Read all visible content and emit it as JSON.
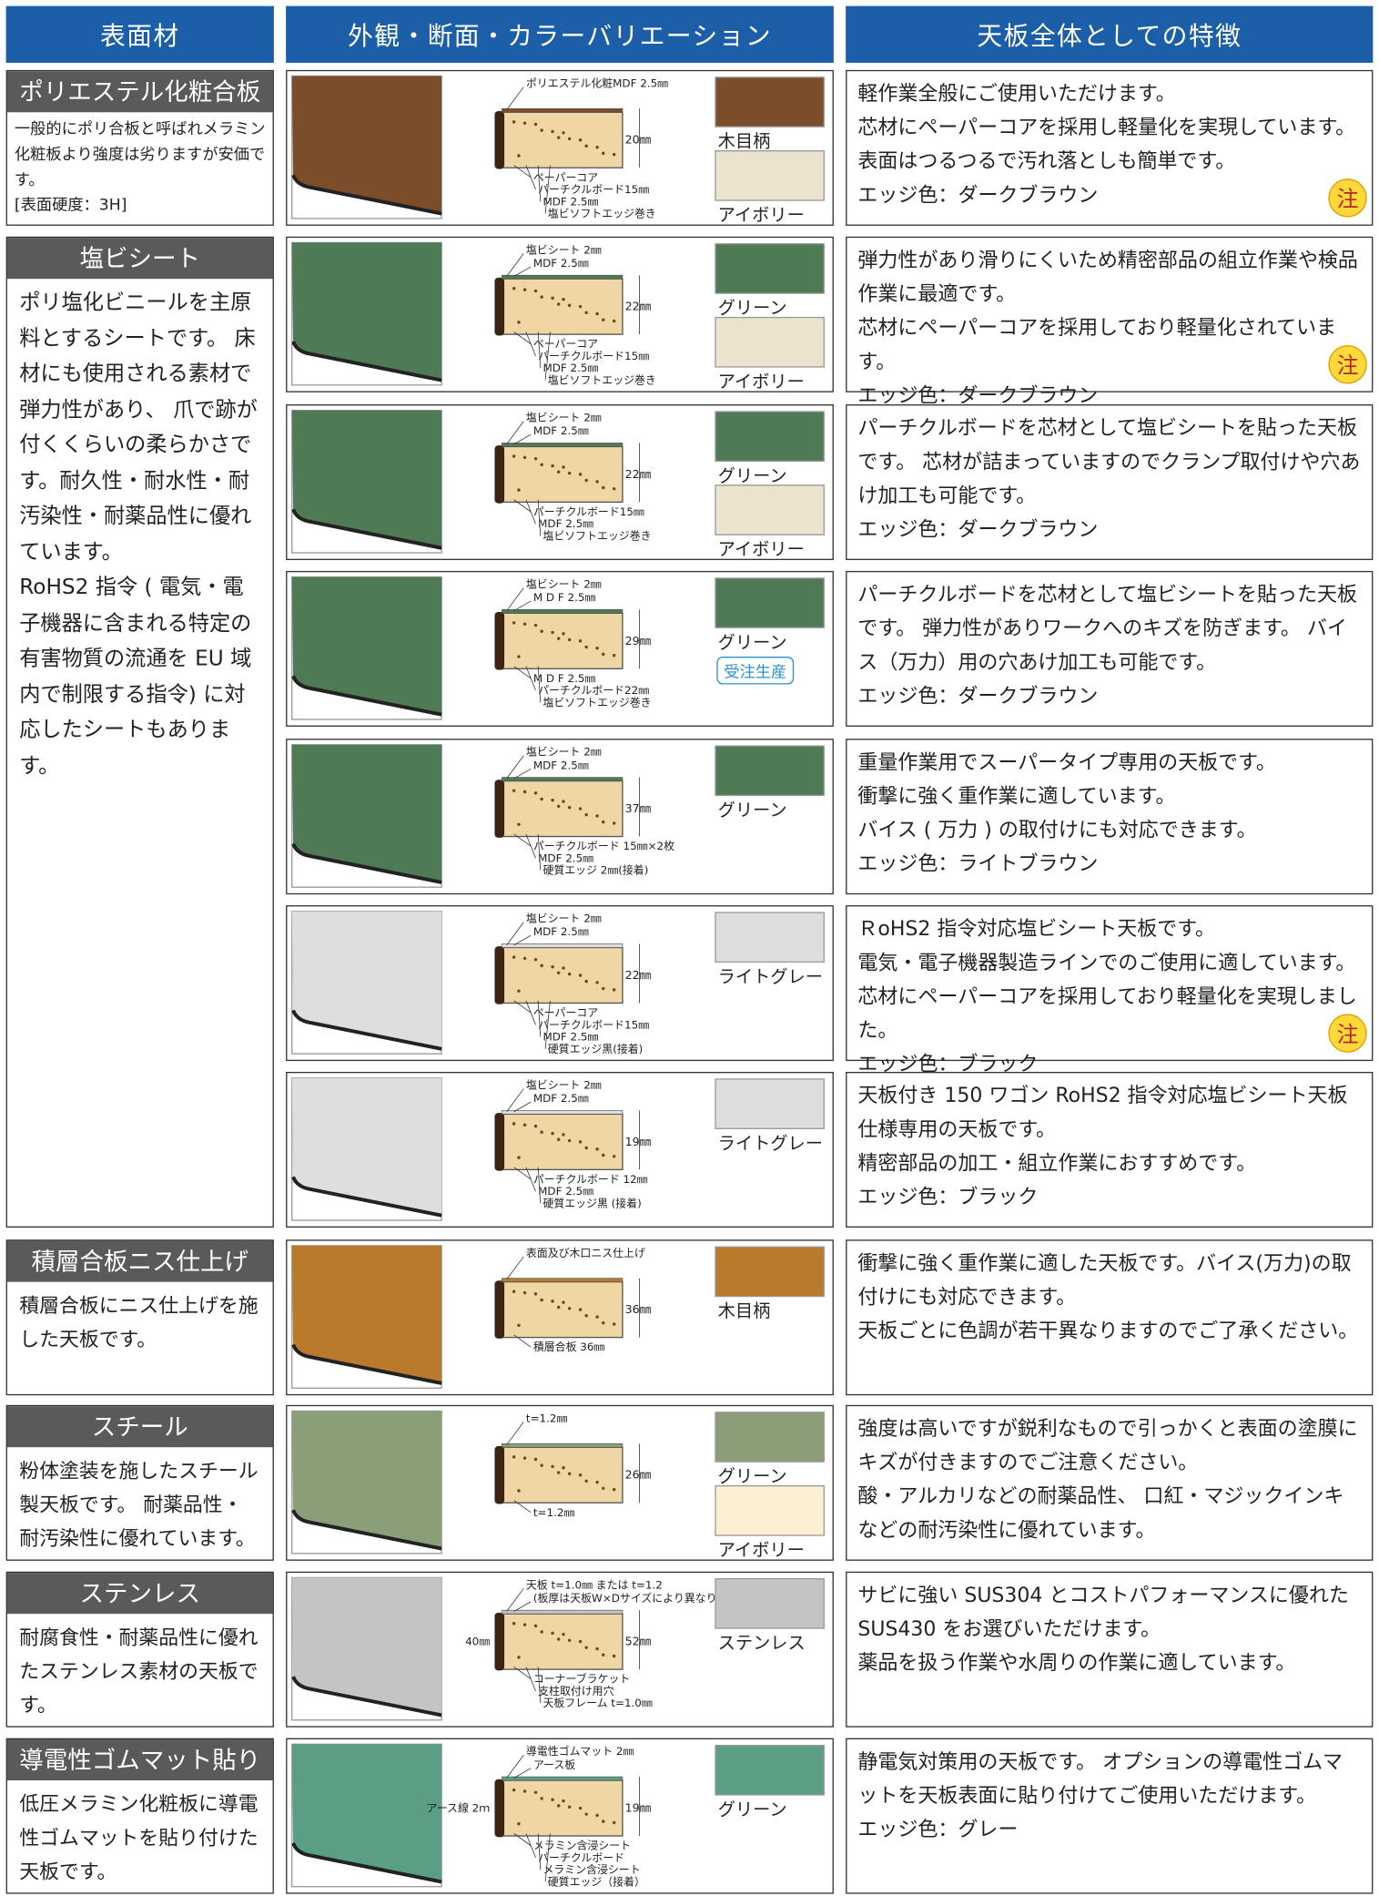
{
  "header": {
    "col1": "表面材",
    "col2": "外観・断面・カラーバリエーション",
    "col3": "天板全体としての特徴"
  },
  "materials": [
    {
      "name": "ポリエステル化粧合板",
      "description": [
        "一般的にポリ合板と呼ばれメラミン化粧板より強度は劣りますが安価です。",
        "[表面硬度：3H]"
      ],
      "rows": [
        {
          "diagram": {
            "top": [
              "ポリエステル化粧MDF 2.5㎜"
            ],
            "dimension": "20㎜",
            "bottom": [
              "ペーパーコア",
              "パーチクルボード15㎜",
              "MDF 2.5㎜",
              "塩ビソフトエッジ巻き"
            ]
          },
          "swatches": [
            {
              "name": "木目柄",
              "color": "#7b4d2a"
            },
            {
              "name": "アイボリー",
              "color": "#ece3cf"
            }
          ],
          "features": [
            "軽作業全般にご使用いただけます。",
            "芯材にペーパーコアを採用し軽量化を実現しています。 表面はつるつるで汚れ落としも簡単です。",
            "エッジ色：ダークブラウン"
          ],
          "note": "注"
        }
      ]
    },
    {
      "name": "塩ビシート",
      "description": [
        "ポリ塩化ビニールを主原料とするシートです。 床材にも使用される素材で弾力性があり、 爪で跡が付くくらいの柔らかさです。耐久性・耐水性・耐汚染性・耐薬品性に優れています。",
        "RoHS2 指令 ( 電気・電子機器に含まれる特定の有害物質の流通を EU 域内で制限する指令) に対応したシートもあります。"
      ],
      "rows": [
        {
          "diagram": {
            "top": [
              "塩ビシート 2㎜",
              "MDF 2.5㎜"
            ],
            "dimension": "22㎜",
            "bottom": [
              "ペーパーコア",
              "パーチクルボード15㎜",
              "MDF 2.5㎜",
              "塩ビソフトエッジ巻き"
            ]
          },
          "swatches": [
            {
              "name": "グリーン",
              "color": "#4e7a55"
            },
            {
              "name": "アイボリー",
              "color": "#ece3cf"
            }
          ],
          "features": [
            "弾力性があり滑りにくいため精密部品の組立作業や検品作業に最適です。",
            "芯材にペーパーコアを採用しており軽量化されています。",
            "エッジ色：ダークブラウン"
          ],
          "note": "注"
        },
        {
          "diagram": {
            "top": [
              "塩ビシート 2㎜",
              "MDF 2.5㎜"
            ],
            "dimension": "22㎜",
            "bottom": [
              "パーチクルボード15㎜",
              "MDF 2.5㎜",
              "塩ビソフトエッジ巻き"
            ]
          },
          "swatches": [
            {
              "name": "グリーン",
              "color": "#4e7a55"
            },
            {
              "name": "アイボリー",
              "color": "#ece3cf"
            }
          ],
          "features": [
            "パーチクルボードを芯材として塩ビシートを貼った天板です。 芯材が詰まっていますのでクランプ取付けや穴あけ加工も可能です。",
            "エッジ色：ダークブラウン"
          ]
        },
        {
          "diagram": {
            "top": [
              "塩ビシート 2㎜",
              "M D F 2.5㎜"
            ],
            "dimension": "29㎜",
            "bottom": [
              "M D F 2.5㎜",
              "パーチクルボード22㎜",
              "塩ビソフトエッジ巻き"
            ]
          },
          "swatches": [
            {
              "name": "グリーン",
              "color": "#4e7a55"
            }
          ],
          "badge": "受注生産",
          "features": [
            "パーチクルボードを芯材として塩ビシートを貼った天板です。 弾力性がありワークへのキズを防ぎます。 バイス（万力）用の穴あけ加工も可能です。",
            "エッジ色：ダークブラウン"
          ]
        },
        {
          "diagram": {
            "top": [
              "塩ビシート 2㎜",
              "MDF 2.5㎜"
            ],
            "dimension": "37㎜",
            "bottom": [
              "パーチクルボード 15㎜×2枚",
              "MDF 2.5㎜",
              "硬質エッジ 2㎜(接着)"
            ]
          },
          "swatches": [
            {
              "name": "グリーン",
              "color": "#4e7a55"
            }
          ],
          "features": [
            "重量作業用でスーパータイプ専用の天板です。",
            "衝撃に強く重作業に適しています。",
            "バイス ( 万力 ) の取付けにも対応できます。",
            "エッジ色：ライトブラウン"
          ]
        },
        {
          "diagram": {
            "top": [
              "塩ビシート 2㎜",
              "MDF 2.5㎜"
            ],
            "dimension": "22㎜",
            "bottom": [
              "ペーパーコア",
              "パーチクルボード15㎜",
              "MDF 2.5㎜",
              "硬質エッジ黒(接着)"
            ]
          },
          "swatches": [
            {
              "name": "ライトグレー",
              "color": "#dedede"
            }
          ],
          "features": [
            "ＲoHS2 指令対応塩ビシート天板です。",
            "電気・電子機器製造ラインでのご使用に適しています。",
            "芯材にペーパーコアを採用しており軽量化を実現しました。",
            "エッジ色：ブラック"
          ],
          "note": "注"
        },
        {
          "diagram": {
            "top": [
              "塩ビシート 2㎜",
              "MDF 2.5㎜"
            ],
            "dimension": "19㎜",
            "bottom": [
              "パーチクルボード 12㎜",
              "MDF 2.5㎜",
              "硬質エッジ黒 (接着)"
            ]
          },
          "swatches": [
            {
              "name": "ライトグレー",
              "color": "#dedede"
            }
          ],
          "features": [
            "天板付き 150 ワゴン RoHS2 指令対応塩ビシート天板仕様専用の天板です。",
            "精密部品の加工・組立作業におすすめです。",
            "エッジ色：ブラック"
          ]
        }
      ]
    },
    {
      "name": "積層合板ニス仕上げ",
      "description": [
        "積層合板にニス仕上げを施した天板です。"
      ],
      "rows": [
        {
          "diagram": {
            "top": [
              "表面及び木口ニス仕上げ"
            ],
            "dimension": "36㎜",
            "bottom": [
              "積層合板 36㎜"
            ]
          },
          "swatches": [
            {
              "name": "木目柄",
              "color": "#b97a2c"
            }
          ],
          "features": [
            "衝撃に強く重作業に適した天板です。バイス(万力)の取付けにも対応できます。",
            "天板ごとに色調が若干異なりますのでご了承ください。"
          ]
        }
      ]
    },
    {
      "name": "スチール",
      "description": [
        "粉体塗装を施したスチール製天板です。 耐薬品性・耐汚染性に優れています。"
      ],
      "rows": [
        {
          "diagram": {
            "top": [
              "t=1.2㎜"
            ],
            "dimension": "26㎜",
            "bottom": [
              "t=1.2㎜"
            ]
          },
          "swatches": [
            {
              "name": "グリーン",
              "color": "#8a9e78"
            },
            {
              "name": "アイボリー",
              "color": "#fcf0d2"
            }
          ],
          "features": [
            "強度は高いですが鋭利なもので引っかくと表面の塗膜にキズが付きますのでご注意ください。",
            "酸・アルカリなどの耐薬品性、 口紅・マジックインキなどの耐汚染性に優れています。"
          ]
        }
      ]
    },
    {
      "name": "ステンレス",
      "description": [
        "耐腐食性・耐薬品性に優れたステンレス素材の天板です。"
      ],
      "rows": [
        {
          "diagram": {
            "top": [
              "天板 t=1.0㎜ または t=1.2",
              "(板厚は天板W×Dサイズにより異なります)"
            ],
            "left": [
              "40㎜"
            ],
            "dimension": "52㎜",
            "bottom": [
              "コーナーブラケット",
              "支柱取付け用穴",
              "天板フレーム t=1.0㎜"
            ]
          },
          "swatches": [
            {
              "name": "ステンレス",
              "color": "#c4c4c4"
            }
          ],
          "features": [
            "サビに強い SUS304 とコストパフォーマンスに優れた SUS430 をお選びいただけます。",
            "薬品を扱う作業や水周りの作業に適しています。"
          ]
        }
      ]
    },
    {
      "name": "導電性ゴムマット貼り",
      "description": [
        "低圧メラミン化粧板に導電性ゴムマットを貼り付けた天板です。"
      ],
      "rows": [
        {
          "diagram": {
            "top": [
              "導電性ゴムマット 2㎜",
              "アース板"
            ],
            "left": [
              "アース線 2ｍ"
            ],
            "dimension": "19㎜",
            "bottom": [
              "メラミン含浸シート",
              "パーチクルボード",
              "メラミン含浸シート",
              "硬質エッジ（接着）"
            ]
          },
          "swatches": [
            {
              "name": "グリーン",
              "color": "#5a9e84"
            }
          ],
          "features": [
            "静電気対策用の天板です。 オプションの導電性ゴムマットを天板表面に貼り付けてご使用いただけます。",
            "エッジ色：グレー"
          ]
        }
      ]
    }
  ]
}
